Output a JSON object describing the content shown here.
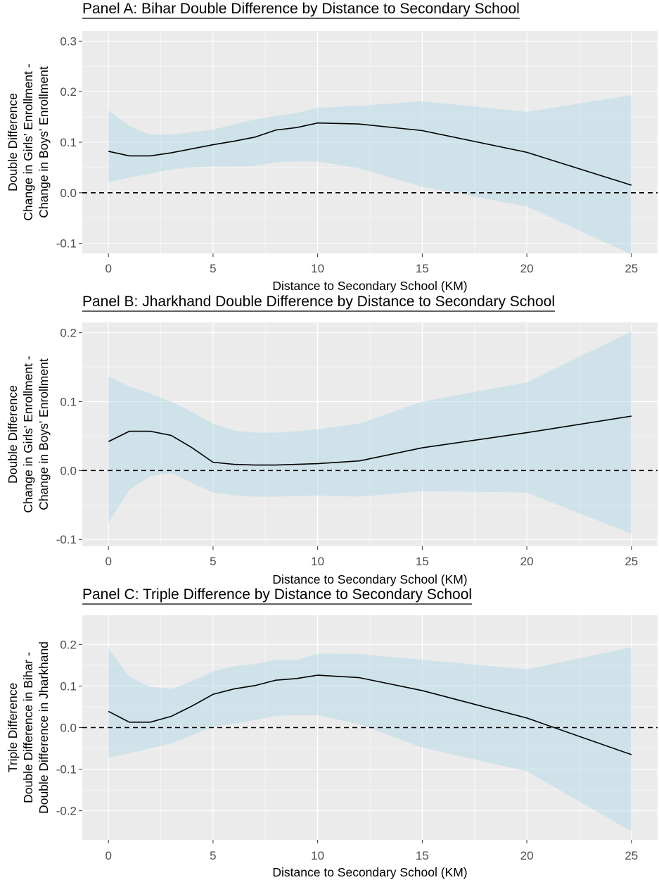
{
  "chart_data": [
    {
      "type": "line",
      "title": "Panel A: Bihar Double Difference by Distance to Secondary School",
      "xlabel": "Distance to Secondary School (KM)",
      "ylabel": [
        "Double Difference",
        "Change in Girls' Enrollment -",
        "Change in Boys' Enrollment"
      ],
      "xlim": [
        -1.25,
        26.25
      ],
      "ylim": [
        -0.12,
        0.32
      ],
      "xticks": [
        0,
        5,
        10,
        15,
        20,
        25
      ],
      "xtick_labels": [
        "0",
        "5",
        "10",
        "15",
        "20",
        "25"
      ],
      "yticks": [
        -0.1,
        0.0,
        0.1,
        0.2,
        0.3
      ],
      "ytick_labels": [
        "-0.1",
        "0.0",
        "0.1",
        "0.2",
        "0.3"
      ],
      "reference_line_y": 0,
      "x": [
        0,
        1,
        2,
        3,
        4,
        5,
        6,
        7,
        8,
        9,
        10,
        12,
        15,
        20,
        25
      ],
      "estimate": [
        0.082,
        0.073,
        0.073,
        0.079,
        0.087,
        0.095,
        0.102,
        0.11,
        0.124,
        0.129,
        0.138,
        0.136,
        0.123,
        0.08,
        0.015
      ],
      "ci_lower": [
        0.021,
        0.03,
        0.038,
        0.046,
        0.05,
        0.052,
        0.052,
        0.053,
        0.06,
        0.062,
        0.062,
        0.048,
        0.012,
        -0.027,
        -0.122
      ],
      "ci_upper": [
        0.163,
        0.132,
        0.115,
        0.115,
        0.12,
        0.125,
        0.135,
        0.145,
        0.152,
        0.158,
        0.168,
        0.172,
        0.181,
        0.16,
        0.193
      ],
      "grid": true
    },
    {
      "type": "line",
      "title": "Panel B: Jharkhand Double Difference by Distance to Secondary School",
      "xlabel": "Distance to Secondary School (KM)",
      "ylabel": [
        "Double Difference",
        "Change in Girls' Enrollment -",
        "Change in Boys' Enrollment"
      ],
      "xlim": [
        -1.25,
        26.25
      ],
      "ylim": [
        -0.11,
        0.215
      ],
      "xticks": [
        0,
        5,
        10,
        15,
        20,
        25
      ],
      "xtick_labels": [
        "0",
        "5",
        "10",
        "15",
        "20",
        "25"
      ],
      "yticks": [
        -0.1,
        0.0,
        0.1,
        0.2
      ],
      "ytick_labels": [
        "-0.1",
        "0.0",
        "0.1",
        "0.2"
      ],
      "reference_line_y": 0,
      "x": [
        0,
        1,
        2,
        3,
        4,
        5,
        6,
        7,
        8,
        9,
        10,
        12,
        15,
        20,
        25
      ],
      "estimate": [
        0.042,
        0.057,
        0.057,
        0.051,
        0.033,
        0.012,
        0.009,
        0.008,
        0.008,
        0.009,
        0.01,
        0.014,
        0.033,
        0.055,
        0.079
      ],
      "ci_lower": [
        -0.076,
        -0.028,
        -0.008,
        -0.004,
        -0.018,
        -0.032,
        -0.036,
        -0.038,
        -0.038,
        -0.037,
        -0.036,
        -0.038,
        -0.03,
        -0.032,
        -0.092
      ],
      "ci_upper": [
        0.137,
        0.122,
        0.112,
        0.1,
        0.085,
        0.068,
        0.058,
        0.055,
        0.055,
        0.057,
        0.06,
        0.068,
        0.1,
        0.128,
        0.202
      ],
      "grid": true
    },
    {
      "type": "line",
      "title": "Panel C: Triple Difference by Distance to Secondary School",
      "xlabel": "Distance to Secondary School (KM)",
      "ylabel": [
        "Triple Difference",
        "Double Difference in Bihar -",
        "Double Difference in Jharkhand"
      ],
      "xlim": [
        -1.25,
        26.25
      ],
      "ylim": [
        -0.27,
        0.27
      ],
      "xticks": [
        0,
        5,
        10,
        15,
        20,
        25
      ],
      "xtick_labels": [
        "0",
        "5",
        "10",
        "15",
        "20",
        "25"
      ],
      "yticks": [
        -0.2,
        -0.1,
        0.0,
        0.1,
        0.2
      ],
      "ytick_labels": [
        "-0.2",
        "-0.1",
        "0.0",
        "0.1",
        "0.2"
      ],
      "reference_line_y": 0,
      "x": [
        0,
        1,
        2,
        3,
        4,
        5,
        6,
        7,
        8,
        9,
        10,
        12,
        15,
        20,
        25
      ],
      "estimate": [
        0.039,
        0.013,
        0.013,
        0.027,
        0.052,
        0.08,
        0.093,
        0.101,
        0.114,
        0.118,
        0.126,
        0.12,
        0.089,
        0.023,
        -0.065
      ],
      "ci_lower": [
        -0.071,
        -0.062,
        -0.05,
        -0.038,
        -0.018,
        0.002,
        0.01,
        0.018,
        0.028,
        0.03,
        0.03,
        0.008,
        -0.048,
        -0.105,
        -0.25
      ],
      "ci_upper": [
        0.19,
        0.122,
        0.098,
        0.093,
        0.112,
        0.135,
        0.148,
        0.153,
        0.163,
        0.162,
        0.178,
        0.177,
        0.163,
        0.14,
        0.193
      ],
      "grid": true
    }
  ],
  "colors": {
    "panel_background": "#ebebeb",
    "grid": "#ffffff",
    "ribbon": "#add8e6",
    "line": "#000000"
  }
}
